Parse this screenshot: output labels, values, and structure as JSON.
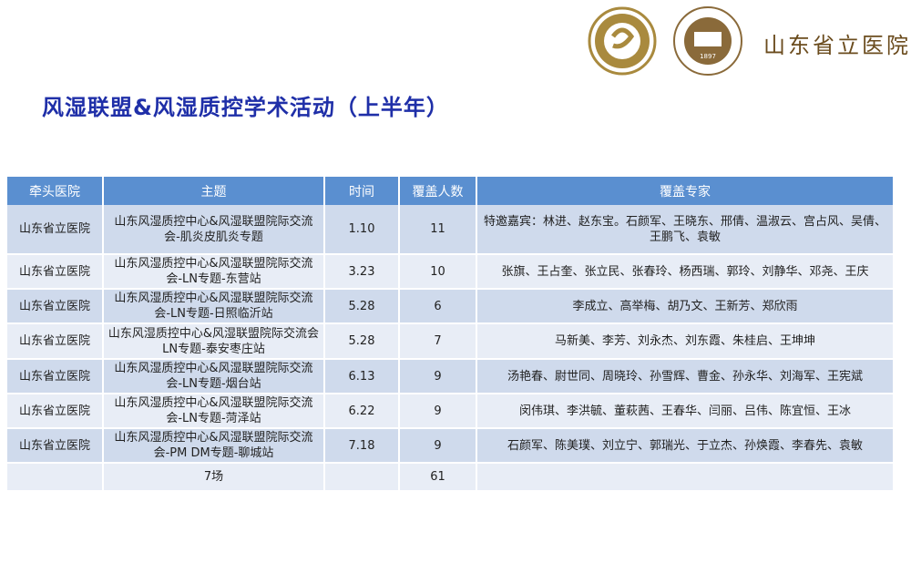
{
  "logo": {
    "text": "山东省立医院",
    "seal_year": "1897"
  },
  "title": "风湿联盟&风湿质控学术活动（上半年）",
  "table": {
    "headers": [
      "牵头医院",
      "主题",
      "时间",
      "覆盖人数",
      "覆盖专家"
    ],
    "rows": [
      {
        "hospital": "山东省立医院",
        "topic": "山东风湿质控中心&风湿联盟院际交流会-肌炎皮肌炎专题",
        "date": "1.10",
        "count": "11",
        "experts": "特邀嘉宾：林进、赵东宝。石颜军、王晓东、邢倩、温淑云、宫占风、吴倩、王鹏飞、袁敏"
      },
      {
        "hospital": "山东省立医院",
        "topic": "山东风湿质控中心&风湿联盟院际交流会-LN专题-东营站",
        "date": "3.23",
        "count": "10",
        "experts": "张旗、王占奎、张立民、张春玲、杨西瑞、郭玲、刘静华、邓尧、王庆"
      },
      {
        "hospital": "山东省立医院",
        "topic": "山东风湿质控中心&风湿联盟院际交流会-LN专题-日照临沂站",
        "date": "5.28",
        "count": "6",
        "experts": "李成立、高举梅、胡乃文、王新芳、郑欣雨"
      },
      {
        "hospital": "山东省立医院",
        "topic": "山东风湿质控中心&风湿联盟院际交流会LN专题-泰安枣庄站",
        "date": "5.28",
        "count": "7",
        "experts": "马新美、李芳、刘永杰、刘东霞、朱桂启、王坤坤"
      },
      {
        "hospital": "山东省立医院",
        "topic": "山东风湿质控中心&风湿联盟院际交流会-LN专题-烟台站",
        "date": "6.13",
        "count": "9",
        "experts": "汤艳春、尉世同、周晓玲、孙雪辉、曹金、孙永华、刘海军、王宪斌"
      },
      {
        "hospital": "山东省立医院",
        "topic": "山东风湿质控中心&风湿联盟院际交流会-LN专题-菏泽站",
        "date": "6.22",
        "count": "9",
        "experts": "闵伟琪、李洪毓、董萩茜、王春华、闫丽、吕伟、陈宜恒、王冰"
      },
      {
        "hospital": "山东省立医院",
        "topic": "山东风湿质控中心&风湿联盟院际交流会-PM DM专题-聊城站",
        "date": "7.18",
        "count": "9",
        "experts": "石颜军、陈美璞、刘立宁、郭瑞光、于立杰、孙焕霞、李春先、袁敏"
      }
    ],
    "total": {
      "topic": "7场",
      "count": "61"
    }
  }
}
